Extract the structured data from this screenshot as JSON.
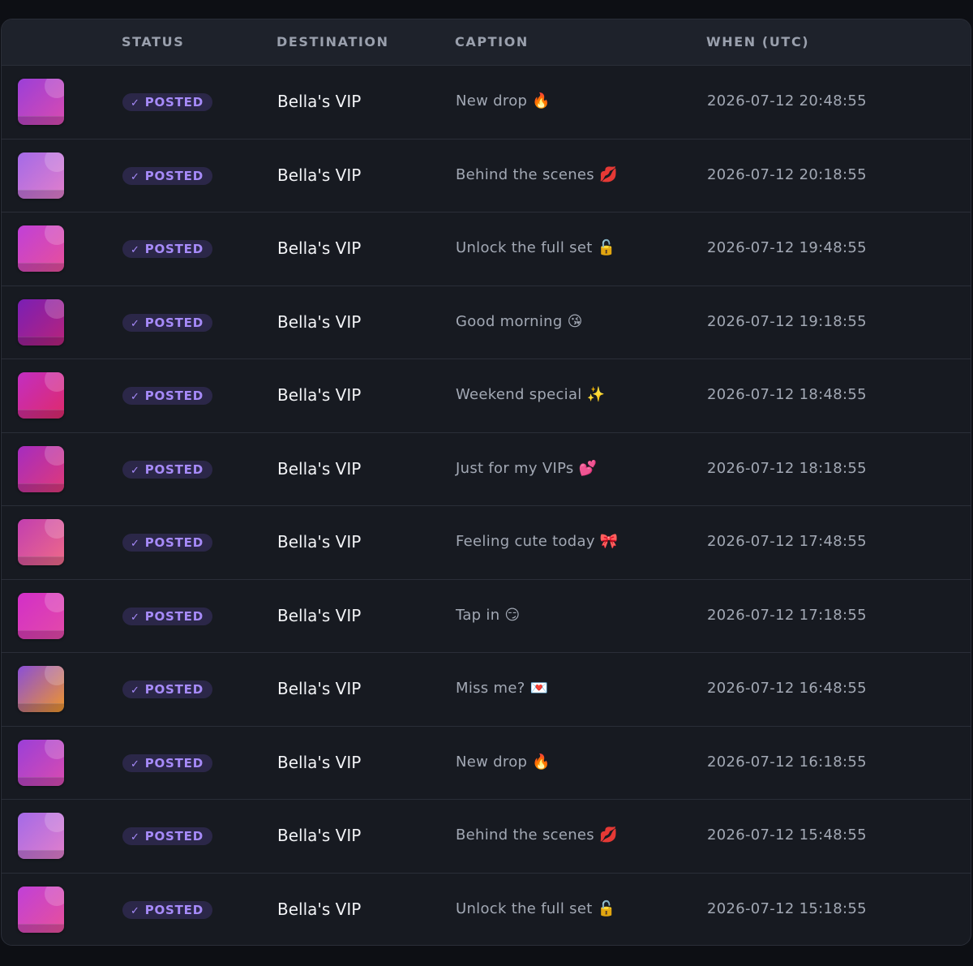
{
  "table": {
    "headers": {
      "thumb": "",
      "status": "STATUS",
      "destination": "DESTINATION",
      "caption": "CAPTION",
      "when": "WHEN (UTC)"
    },
    "rows": [
      {
        "status": "POSTED",
        "destination": "Bella's VIP",
        "caption": "New drop 🔥",
        "when": "2026-07-12 20:48:55",
        "thumb_colors": [
          "#9b3fd8",
          "#d94bb0"
        ]
      },
      {
        "status": "POSTED",
        "destination": "Bella's VIP",
        "caption": "Behind the scenes 💋",
        "when": "2026-07-12 20:18:55",
        "thumb_colors": [
          "#a46ae8",
          "#e27fcb"
        ]
      },
      {
        "status": "POSTED",
        "destination": "Bella's VIP",
        "caption": "Unlock the full set 🔓",
        "when": "2026-07-12 19:48:55",
        "thumb_colors": [
          "#c040d8",
          "#e8509a"
        ]
      },
      {
        "status": "POSTED",
        "destination": "Bella's VIP",
        "caption": "Good morning 😘",
        "when": "2026-07-12 19:18:55",
        "thumb_colors": [
          "#7a1fb5",
          "#b8237a"
        ]
      },
      {
        "status": "POSTED",
        "destination": "Bella's VIP",
        "caption": "Weekend special ✨",
        "when": "2026-07-12 18:48:55",
        "thumb_colors": [
          "#c22ec2",
          "#e02a6a"
        ]
      },
      {
        "status": "POSTED",
        "destination": "Bella's VIP",
        "caption": "Just for my VIPs 💕",
        "when": "2026-07-12 18:18:55",
        "thumb_colors": [
          "#a52cc0",
          "#e03a78"
        ]
      },
      {
        "status": "POSTED",
        "destination": "Bella's VIP",
        "caption": "Feeling cute today 🎀",
        "when": "2026-07-12 17:48:55",
        "thumb_colors": [
          "#c23fb0",
          "#ef6a88"
        ]
      },
      {
        "status": "POSTED",
        "destination": "Bella's VIP",
        "caption": "Tap in 😏",
        "when": "2026-07-12 17:18:55",
        "thumb_colors": [
          "#d22fc8",
          "#e44aa8"
        ]
      },
      {
        "status": "POSTED",
        "destination": "Bella's VIP",
        "caption": "Miss me? 💌",
        "when": "2026-07-12 16:48:55",
        "thumb_colors": [
          "#8a4fd8",
          "#f0962a"
        ]
      },
      {
        "status": "POSTED",
        "destination": "Bella's VIP",
        "caption": "New drop 🔥",
        "when": "2026-07-12 16:18:55",
        "thumb_colors": [
          "#9b3fd8",
          "#d94bb0"
        ]
      },
      {
        "status": "POSTED",
        "destination": "Bella's VIP",
        "caption": "Behind the scenes 💋",
        "when": "2026-07-12 15:48:55",
        "thumb_colors": [
          "#a46ae8",
          "#e27fcb"
        ]
      },
      {
        "status": "POSTED",
        "destination": "Bella's VIP",
        "caption": "Unlock the full set 🔓",
        "when": "2026-07-12 15:18:55",
        "thumb_colors": [
          "#c040d8",
          "#e8509a"
        ]
      }
    ]
  },
  "colors": {
    "badge_bg": "#2b2748",
    "badge_text": "#a78bfa",
    "panel_bg": "#171a21",
    "header_bg": "#1e222b"
  },
  "icons": {
    "status_check": "check-icon"
  }
}
